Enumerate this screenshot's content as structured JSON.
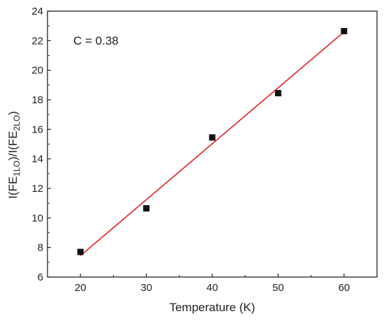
{
  "chart_data": {
    "type": "scatter",
    "xlabel": "Temperature (K)",
    "ylabel": {
      "parts": [
        {
          "text": "I(FE",
          "sub": false
        },
        {
          "text": "1LO",
          "sub": true
        },
        {
          "text": ")/I(FE",
          "sub": false
        },
        {
          "text": "2LO",
          "sub": true
        },
        {
          "text": ")",
          "sub": false
        }
      ]
    },
    "annotation": "C = 0.38",
    "xlim": [
      15,
      65
    ],
    "ylim": [
      6,
      24
    ],
    "xticks": [
      20,
      30,
      40,
      50,
      60
    ],
    "yticks": [
      6,
      8,
      10,
      12,
      14,
      16,
      18,
      20,
      22,
      24
    ],
    "series": [
      {
        "marker": "square",
        "color": "#111111",
        "x": [
          20,
          30,
          40,
          50,
          60
        ],
        "y": [
          7.7,
          10.65,
          15.45,
          18.45,
          22.65
        ]
      }
    ],
    "fit_line": {
      "color": "#e02020",
      "x": [
        20,
        60
      ],
      "y": [
        7.45,
        22.6
      ]
    }
  }
}
